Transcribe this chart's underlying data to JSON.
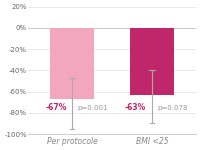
{
  "categories": [
    "Per protocole",
    "BMI <25"
  ],
  "bar_values": [
    -67,
    -63
  ],
  "bar_colors": [
    "#f2a7bc",
    "#c0266a"
  ],
  "error_centers": [
    -71,
    -65
  ],
  "error_low": [
    -95,
    -90
  ],
  "error_high": [
    -47,
    -40
  ],
  "annotations": [
    "-67%",
    "-63%"
  ],
  "pvalues": [
    "p=0.001",
    "p=0.078"
  ],
  "annotation_color": "#c0266a",
  "pvalue_color": "#999999",
  "ylim": [
    -100,
    20
  ],
  "yticks": [
    20,
    0,
    -20,
    -40,
    -60,
    -80,
    -100
  ],
  "ytick_labels": [
    "20%",
    "0%",
    "-20%",
    "-40%",
    "-60%",
    "-80%",
    "-100%"
  ],
  "background_color": "#ffffff",
  "grid_color": "#e0e0e0",
  "bar_width": 0.55,
  "label_fontsize": 5.5,
  "annotation_fontsize": 5.5,
  "pval_fontsize": 5.0,
  "tick_fontsize": 5.0
}
